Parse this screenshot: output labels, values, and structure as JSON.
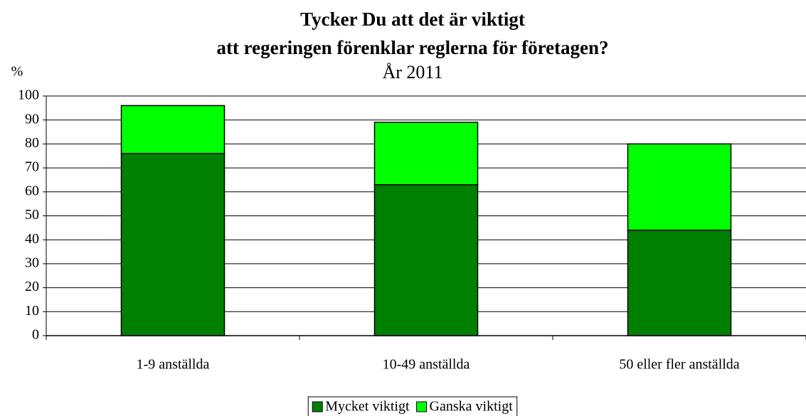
{
  "chart_data": {
    "type": "stacked_bar",
    "title": [
      "Tycker Du att det är viktigt",
      "att regeringen förenklar reglerna för företagen?"
    ],
    "subtitle": "År 2011",
    "y_label": "%",
    "categories": [
      "1-9 anställda",
      "10-49 anställda",
      "50 eller fler anställda"
    ],
    "series": [
      {
        "name": "Mycket viktigt",
        "color": "#008000",
        "values": [
          76,
          63,
          44
        ]
      },
      {
        "name": "Ganska viktigt",
        "color": "#00ff00",
        "values": [
          20,
          26,
          36
        ]
      }
    ],
    "ylim": [
      0,
      100
    ],
    "yticks": [
      0,
      10,
      20,
      30,
      40,
      50,
      60,
      70,
      80,
      90,
      100
    ],
    "grid": true,
    "legend": "bottom"
  }
}
